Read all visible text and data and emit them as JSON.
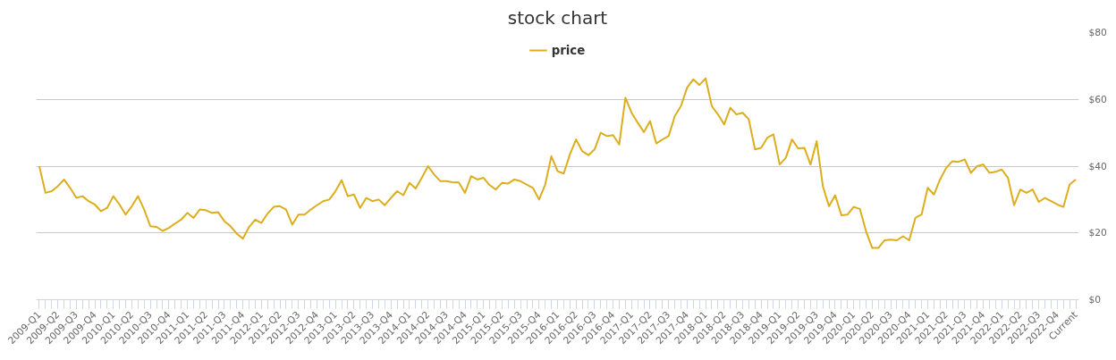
{
  "chart_data": {
    "type": "line",
    "title": "stock chart",
    "categories": [
      "2009-Q1",
      null,
      null,
      "2009-Q2",
      null,
      null,
      "2009-Q3",
      null,
      null,
      "2009-Q4",
      null,
      null,
      "2010-Q1",
      null,
      null,
      "2010-Q2",
      null,
      null,
      "2010-Q3",
      null,
      null,
      "2010-Q4",
      null,
      null,
      "2011-Q1",
      null,
      null,
      "2011-Q2",
      null,
      null,
      "2011-Q3",
      null,
      null,
      "2011-Q4",
      null,
      null,
      "2012-Q1",
      null,
      null,
      "2012-Q2",
      null,
      null,
      "2012-Q3",
      null,
      null,
      "2012-Q4",
      null,
      null,
      "2013-Q1",
      null,
      null,
      "2013-Q2",
      null,
      null,
      "2013-Q3",
      null,
      null,
      "2013-Q4",
      null,
      null,
      "2014-Q1",
      null,
      null,
      "2014-Q2",
      null,
      null,
      "2014-Q3",
      null,
      null,
      "2014-Q4",
      null,
      null,
      "2015-Q1",
      null,
      null,
      "2015-Q2",
      null,
      null,
      "2015-Q3",
      null,
      null,
      "2015-Q4",
      null,
      null,
      "2016-Q1",
      null,
      null,
      "2016-Q2",
      null,
      null,
      "2016-Q3",
      null,
      null,
      "2016-Q4",
      null,
      null,
      "2017-Q1",
      null,
      null,
      "2017-Q2",
      null,
      null,
      "2017-Q3",
      null,
      null,
      "2017-Q4",
      null,
      null,
      "2018-Q1",
      null,
      null,
      "2018-Q2",
      null,
      null,
      "2018-Q3",
      null,
      null,
      "2018-Q4",
      null,
      null,
      "2019-Q1",
      null,
      null,
      "2019-Q2",
      null,
      null,
      "2019-Q3",
      null,
      null,
      "2019-Q4",
      null,
      null,
      "2020-Q1",
      null,
      null,
      "2020-Q2",
      null,
      null,
      "2020-Q3",
      null,
      null,
      "2020-Q4",
      null,
      null,
      "2021-Q1",
      null,
      null,
      "2021-Q2",
      null,
      null,
      "2021-Q3",
      null,
      null,
      "2021-Q4",
      null,
      null,
      "2022-Q1",
      null,
      null,
      "2022-Q2",
      null,
      null,
      "2022-Q3",
      null,
      null,
      "2022-Q4",
      null,
      null,
      "Current"
    ],
    "series": [
      {
        "name": "price",
        "color": "#dcae1d",
        "values": [
          40,
          32,
          32.5,
          34,
          36,
          33.5,
          30.5,
          31,
          29.5,
          28.5,
          26.5,
          27.5,
          31,
          28.5,
          25.5,
          28,
          31,
          27,
          22,
          21.8,
          20.6,
          21.5,
          22.8,
          24,
          26,
          24.5,
          27,
          26.8,
          26,
          26.2,
          23.5,
          22,
          19.8,
          18.3,
          21.8,
          24,
          23,
          25.8,
          27.8,
          28,
          27,
          22.5,
          25.5,
          25.5,
          27,
          28.3,
          29.5,
          30,
          32.5,
          35.8,
          31,
          31.5,
          27.5,
          30.5,
          29.5,
          30,
          28.3,
          30.5,
          32.5,
          31.3,
          35,
          33.3,
          36.5,
          40,
          37.5,
          35.5,
          35.5,
          35.2,
          35.1,
          32,
          37,
          36,
          36.5,
          34.3,
          33,
          35,
          34.8,
          36,
          35.5,
          34.5,
          33.5,
          30,
          34.5,
          43,
          38.5,
          37.8,
          43.5,
          48,
          44.5,
          43.3,
          45,
          50,
          49,
          49.3,
          46.5,
          60.5,
          56,
          53,
          50.2,
          53.5,
          46.8,
          48,
          49,
          55,
          58,
          63.5,
          66,
          64.3,
          66.3,
          58,
          55.5,
          52.5,
          57.5,
          55.5,
          56,
          54,
          45,
          45.5,
          48.5,
          49.5,
          40.5,
          42.5,
          48,
          45.3,
          45.5,
          40.5,
          47.5,
          34,
          28,
          31.3,
          25.3,
          25.5,
          27.8,
          27.2,
          20.5,
          15.5,
          15.5,
          17.8,
          18,
          17.8,
          19,
          17.8,
          24.5,
          25.5,
          33.5,
          31.5,
          36,
          39.5,
          41.5,
          41.3,
          42,
          38,
          40,
          40.5,
          38,
          38.3,
          39,
          36.5,
          28.3,
          33,
          32,
          33,
          29.3,
          30.5,
          29.5,
          28.5,
          27.8,
          34.5,
          36
        ]
      }
    ],
    "ylim": [
      0,
      80
    ],
    "yticks": [
      {
        "value": 0,
        "label": "$0"
      },
      {
        "value": 20,
        "label": "$20"
      },
      {
        "value": 40,
        "label": "$40"
      },
      {
        "value": 60,
        "label": "$60"
      },
      {
        "value": 80,
        "label": "$80"
      }
    ],
    "grid": "y",
    "legend": "top"
  }
}
